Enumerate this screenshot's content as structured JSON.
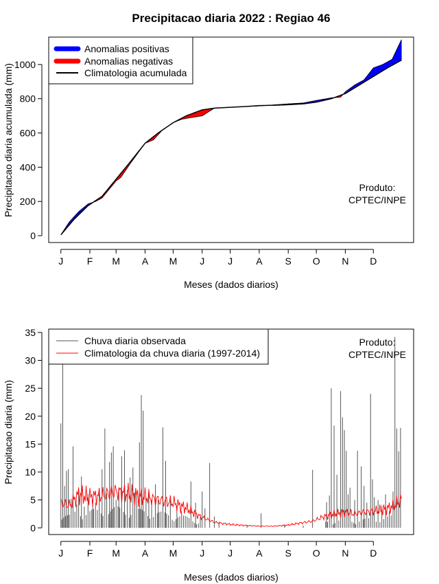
{
  "title": "Precipitacao diaria 2022 : Regiao 46",
  "colors": {
    "positive": "#0000ff",
    "negative": "#ff0000",
    "climatology": "#000000",
    "observed": "#555555",
    "clim_daily": "#ff0000"
  },
  "chart_data": [
    {
      "type": "area",
      "ylabel": "Precipitacao diaria acumulada (mm)",
      "xlabel": "Meses (dados diarios)",
      "ylim": [
        -40,
        1160
      ],
      "yticks": [
        0,
        200,
        400,
        600,
        800,
        1000
      ],
      "xticks": [
        {
          "day": 1,
          "label": "J"
        },
        {
          "day": 32,
          "label": "F"
        },
        {
          "day": 60,
          "label": "M"
        },
        {
          "day": 91,
          "label": "A"
        },
        {
          "day": 121,
          "label": "M"
        },
        {
          "day": 152,
          "label": "J"
        },
        {
          "day": 182,
          "label": "J"
        },
        {
          "day": 213,
          "label": "A"
        },
        {
          "day": 244,
          "label": "S"
        },
        {
          "day": 274,
          "label": "O"
        },
        {
          "day": 305,
          "label": "N"
        },
        {
          "day": 335,
          "label": "D"
        }
      ],
      "xlim": [
        -12,
        378
      ],
      "legend": {
        "position": "top-left",
        "entries": [
          {
            "label": "Anomalias positivas",
            "kind": "positive"
          },
          {
            "label": "Anomalias negativas",
            "kind": "negative"
          },
          {
            "label": "Climatologia acumulada",
            "kind": "climatology"
          }
        ]
      },
      "annotation": [
        "Produto:",
        "CPTEC/INPE"
      ],
      "climatology_points": [
        [
          1,
          5
        ],
        [
          15,
          95
        ],
        [
          30,
          175
        ],
        [
          45,
          230
        ],
        [
          60,
          330
        ],
        [
          75,
          430
        ],
        [
          91,
          540
        ],
        [
          105,
          600
        ],
        [
          121,
          660
        ],
        [
          135,
          700
        ],
        [
          152,
          735
        ],
        [
          165,
          745
        ],
        [
          182,
          750
        ],
        [
          200,
          755
        ],
        [
          213,
          760
        ],
        [
          230,
          762
        ],
        [
          244,
          765
        ],
        [
          260,
          770
        ],
        [
          274,
          780
        ],
        [
          290,
          800
        ],
        [
          305,
          830
        ],
        [
          320,
          880
        ],
        [
          335,
          930
        ],
        [
          350,
          980
        ],
        [
          365,
          1025
        ]
      ],
      "observed_points": [
        [
          1,
          5
        ],
        [
          10,
          80
        ],
        [
          20,
          140
        ],
        [
          30,
          185
        ],
        [
          38,
          200
        ],
        [
          45,
          220
        ],
        [
          60,
          320
        ],
        [
          65,
          340
        ],
        [
          75,
          420
        ],
        [
          91,
          540
        ],
        [
          100,
          560
        ],
        [
          110,
          620
        ],
        [
          121,
          660
        ],
        [
          130,
          680
        ],
        [
          140,
          690
        ],
        [
          152,
          700
        ],
        [
          165,
          745
        ],
        [
          182,
          750
        ],
        [
          213,
          758
        ],
        [
          244,
          770
        ],
        [
          260,
          775
        ],
        [
          274,
          790
        ],
        [
          290,
          805
        ],
        [
          300,
          810
        ],
        [
          305,
          840
        ],
        [
          315,
          880
        ],
        [
          325,
          910
        ],
        [
          335,
          980
        ],
        [
          345,
          1000
        ],
        [
          355,
          1030
        ],
        [
          365,
          1145
        ]
      ]
    },
    {
      "type": "bar",
      "ylabel": "Precipitacao diaria (mm)",
      "xlabel": "Meses (dados diarios)",
      "ylim": [
        -1.2,
        35.6
      ],
      "yticks": [
        0,
        5,
        10,
        15,
        20,
        25,
        30,
        35
      ],
      "xlim": [
        -12,
        378
      ],
      "legend": {
        "position": "top-left",
        "entries": [
          {
            "label": "Chuva diaria observada",
            "kind": "observed"
          },
          {
            "label": "Climatologia da chuva diaria (1997-2014)",
            "kind": "clim_daily"
          }
        ]
      },
      "annotation": [
        "Produto:",
        "CPTEC/INPE"
      ],
      "observed_peaks": [
        [
          1,
          18.7
        ],
        [
          3,
          29.8
        ],
        [
          5,
          7.5
        ],
        [
          7,
          10.2
        ],
        [
          9,
          10.5
        ],
        [
          12,
          5.2
        ],
        [
          14,
          14.6
        ],
        [
          18,
          4.2
        ],
        [
          20,
          6.5
        ],
        [
          23,
          9.2
        ],
        [
          26,
          3.8
        ],
        [
          30,
          6.1
        ],
        [
          35,
          5.0
        ],
        [
          38,
          4.5
        ],
        [
          42,
          6.5
        ],
        [
          45,
          10.5
        ],
        [
          48,
          17.8
        ],
        [
          50,
          6.2
        ],
        [
          53,
          11.8
        ],
        [
          55,
          13.5
        ],
        [
          57,
          14.6
        ],
        [
          60,
          5.0
        ],
        [
          63,
          7.0
        ],
        [
          66,
          12.8
        ],
        [
          69,
          13.9
        ],
        [
          72,
          6.8
        ],
        [
          75,
          9.0
        ],
        [
          78,
          10.8
        ],
        [
          80,
          6.3
        ],
        [
          82,
          5.8
        ],
        [
          85,
          15.3
        ],
        [
          87,
          23.8
        ],
        [
          89,
          21.0
        ],
        [
          92,
          5.5
        ],
        [
          95,
          7.0
        ],
        [
          98,
          5.0
        ],
        [
          102,
          7.8
        ],
        [
          105,
          5.0
        ],
        [
          110,
          18.0
        ],
        [
          113,
          12.0
        ],
        [
          118,
          5.0
        ],
        [
          125,
          4.0
        ],
        [
          130,
          3.0
        ],
        [
          140,
          8.3
        ],
        [
          145,
          4.5
        ],
        [
          150,
          2.0
        ],
        [
          152,
          6.5
        ],
        [
          155,
          3.5
        ],
        [
          160,
          11.6
        ],
        [
          165,
          2.0
        ],
        [
          170,
          1.0
        ],
        [
          200,
          0.5
        ],
        [
          215,
          2.6
        ],
        [
          240,
          0.6
        ],
        [
          260,
          0.4
        ],
        [
          270,
          10.4
        ],
        [
          285,
          4.6
        ],
        [
          288,
          5.8
        ],
        [
          290,
          25.0
        ],
        [
          293,
          18.3
        ],
        [
          296,
          9.5
        ],
        [
          300,
          24.5
        ],
        [
          302,
          19.8
        ],
        [
          304,
          17.5
        ],
        [
          306,
          13.8
        ],
        [
          308,
          6.0
        ],
        [
          310,
          7.2
        ],
        [
          315,
          5.0
        ],
        [
          318,
          13.8
        ],
        [
          322,
          11.0
        ],
        [
          325,
          7.5
        ],
        [
          328,
          4.5
        ],
        [
          332,
          24.0
        ],
        [
          334,
          8.7
        ],
        [
          336,
          5.5
        ],
        [
          340,
          5.0
        ],
        [
          344,
          4.0
        ],
        [
          348,
          6.0
        ],
        [
          352,
          3.0
        ],
        [
          356,
          6.5
        ],
        [
          358,
          34.2
        ],
        [
          360,
          17.8
        ],
        [
          362,
          13.7
        ],
        [
          364,
          17.9
        ]
      ],
      "climatology_points": [
        [
          1,
          4.5
        ],
        [
          10,
          4.0
        ],
        [
          20,
          6.0
        ],
        [
          30,
          5.5
        ],
        [
          45,
          5.8
        ],
        [
          60,
          6.5
        ],
        [
          75,
          6.0
        ],
        [
          91,
          5.5
        ],
        [
          105,
          5.0
        ],
        [
          121,
          4.5
        ],
        [
          135,
          3.5
        ],
        [
          150,
          2.0
        ],
        [
          165,
          1.0
        ],
        [
          182,
          0.6
        ],
        [
          200,
          0.4
        ],
        [
          213,
          0.3
        ],
        [
          230,
          0.3
        ],
        [
          244,
          0.5
        ],
        [
          255,
          0.8
        ],
        [
          270,
          1.2
        ],
        [
          282,
          2.0
        ],
        [
          295,
          2.5
        ],
        [
          305,
          2.8
        ],
        [
          315,
          2.5
        ],
        [
          325,
          2.8
        ],
        [
          335,
          3.0
        ],
        [
          345,
          3.2
        ],
        [
          355,
          3.8
        ],
        [
          365,
          5.0
        ]
      ]
    }
  ]
}
